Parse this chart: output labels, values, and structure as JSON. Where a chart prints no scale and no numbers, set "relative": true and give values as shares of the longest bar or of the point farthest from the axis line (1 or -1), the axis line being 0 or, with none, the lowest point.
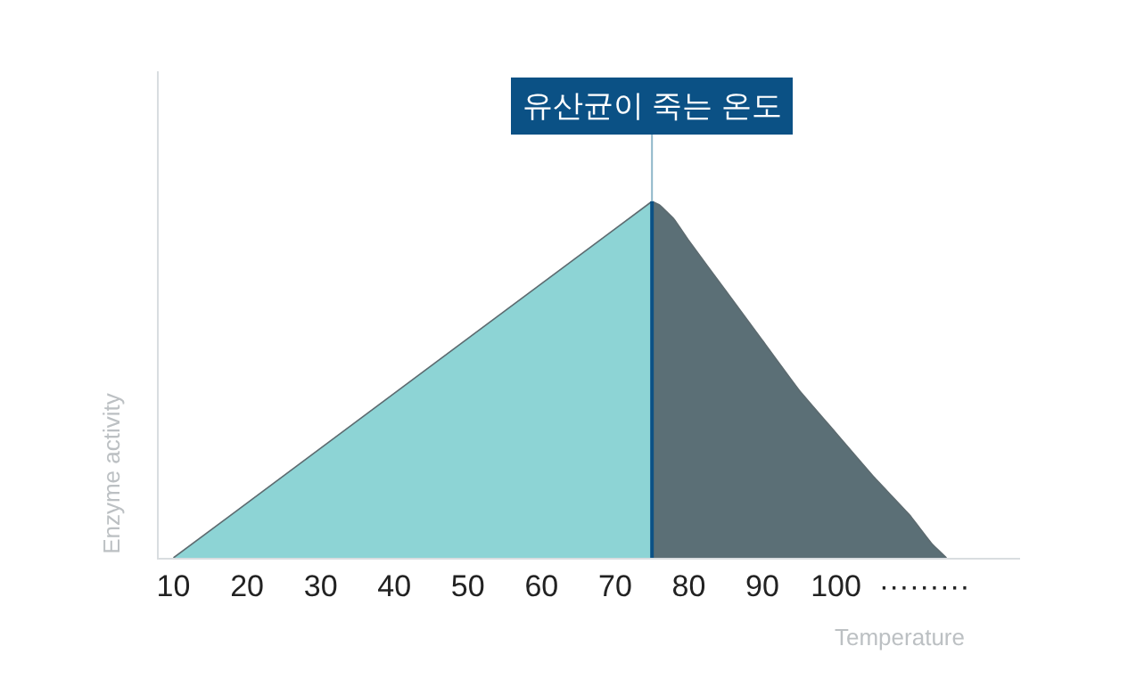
{
  "chart_data": {
    "type": "area",
    "relative": true,
    "xlabel": "Temperature",
    "ylabel": "Enzyme activity",
    "xlim": [
      8,
      125
    ],
    "xticks": [
      10,
      20,
      30,
      40,
      50,
      60,
      70,
      80,
      90,
      100,
      {
        "value": 112,
        "label": "·········"
      }
    ],
    "series": [
      {
        "color": "#8dd4d5",
        "x": [
          10,
          75
        ],
        "values": [
          0,
          1
        ]
      },
      {
        "color": "#5b6f76",
        "x": [
          75,
          76,
          78,
          80,
          85,
          90,
          95,
          100,
          105,
          110,
          113,
          115
        ],
        "values": [
          1,
          0.99,
          0.95,
          0.89,
          0.75,
          0.61,
          0.47,
          0.35,
          0.23,
          0.12,
          0.04,
          0
        ]
      }
    ],
    "ref_lines": [
      {
        "axis": "x",
        "value": 75,
        "label": "유산균이 죽는 온도",
        "color": "#0b5185"
      }
    ]
  }
}
